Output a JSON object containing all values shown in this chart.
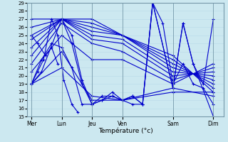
{
  "title": "Température (°c)",
  "bg_color": "#cce8f0",
  "grid_color": "#b8d8e8",
  "line_color": "#0000cc",
  "marker": "+",
  "days": [
    "Mer",
    "Lun",
    "Jeu",
    "Ven",
    "Sam",
    "Dim"
  ],
  "day_x": [
    0,
    1.5,
    3,
    4.5,
    7,
    9
  ],
  "ylim": [
    15,
    29
  ],
  "yticks": [
    15,
    16,
    17,
    18,
    19,
    20,
    21,
    22,
    23,
    24,
    25,
    26,
    27,
    28,
    29
  ],
  "series": [
    {
      "x": [
        0,
        1.5,
        3.0,
        4.5,
        7.0,
        9.0
      ],
      "y": [
        27.0,
        27.0,
        27.0,
        25.0,
        22.5,
        18.0
      ]
    },
    {
      "x": [
        0,
        1.5,
        3.0,
        4.5,
        7.0,
        9.0
      ],
      "y": [
        26.0,
        27.0,
        26.5,
        25.0,
        22.0,
        18.5
      ]
    },
    {
      "x": [
        0,
        1.5,
        3.0,
        4.5,
        7.0,
        9.0
      ],
      "y": [
        25.0,
        27.0,
        26.0,
        25.0,
        21.5,
        19.0
      ]
    },
    {
      "x": [
        0,
        1.5,
        3.0,
        4.5,
        7.0,
        9.0
      ],
      "y": [
        24.5,
        27.0,
        25.5,
        25.0,
        21.0,
        19.5
      ]
    },
    {
      "x": [
        0,
        1.5,
        3.0,
        4.5,
        7.0,
        9.0
      ],
      "y": [
        23.5,
        27.0,
        25.0,
        24.5,
        20.5,
        20.0
      ]
    },
    {
      "x": [
        0,
        1.5,
        3.0,
        4.5,
        7.0,
        9.0
      ],
      "y": [
        22.5,
        27.0,
        24.5,
        24.0,
        20.0,
        20.5
      ]
    },
    {
      "x": [
        0,
        1.5,
        3.0,
        4.5,
        7.0,
        9.0
      ],
      "y": [
        21.5,
        26.5,
        24.0,
        23.0,
        19.5,
        21.0
      ]
    },
    {
      "x": [
        0,
        1.5,
        3.0,
        4.5,
        7.0,
        9.0
      ],
      "y": [
        20.5,
        25.0,
        22.0,
        22.0,
        19.0,
        21.5
      ]
    },
    {
      "x": [
        0,
        1.5,
        3.0,
        4.5,
        7.0,
        9.0
      ],
      "y": [
        19.0,
        21.0,
        17.5,
        17.0,
        18.5,
        17.5
      ]
    },
    {
      "x": [
        0,
        1.5,
        3.0,
        4.5,
        7.0,
        9.0
      ],
      "y": [
        19.0,
        23.0,
        17.0,
        17.0,
        18.0,
        18.0
      ]
    },
    {
      "x": [
        0,
        0.5,
        1.5,
        2.0,
        2.5,
        3.0,
        3.5,
        4.0,
        4.5,
        5.0,
        5.5,
        6.0,
        7.0,
        7.5,
        8.0,
        9.0
      ],
      "y": [
        19.0,
        20.5,
        27.0,
        25.0,
        19.5,
        16.5,
        17.0,
        17.5,
        17.0,
        17.5,
        16.5,
        29.0,
        18.5,
        26.5,
        21.5,
        15.0
      ]
    },
    {
      "x": [
        0,
        0.5,
        1.0,
        1.5,
        2.0,
        2.5,
        3.0,
        3.5,
        4.0,
        4.5,
        5.0,
        5.5,
        6.0,
        6.5,
        7.0,
        7.5,
        8.0,
        8.5,
        9.0
      ],
      "y": [
        19.0,
        22.0,
        24.0,
        23.5,
        21.0,
        16.5,
        16.5,
        17.5,
        17.5,
        17.0,
        16.5,
        16.5,
        29.0,
        26.5,
        19.0,
        21.5,
        19.0,
        18.5,
        16.5
      ]
    },
    {
      "x": [
        0,
        0.3,
        0.6,
        1.0,
        1.3,
        1.6,
        2.0,
        2.3
      ],
      "y": [
        19.0,
        20.5,
        22.0,
        27.0,
        25.0,
        19.5,
        16.5,
        15.5
      ]
    },
    {
      "x": [
        1.5,
        2.0,
        2.5,
        3.0,
        3.5,
        4.0,
        4.5,
        5.0,
        5.5,
        6.0,
        7.0
      ],
      "y": [
        27.0,
        24.0,
        19.0,
        16.5,
        17.0,
        18.0,
        17.0,
        17.5,
        16.5,
        29.0,
        18.5
      ]
    },
    {
      "x": [
        0,
        0.3,
        0.7,
        1.0,
        1.3
      ],
      "y": [
        25.0,
        24.0,
        22.5,
        23.5,
        21.5
      ]
    },
    {
      "x": [
        7.0,
        7.5,
        8.0,
        8.5,
        9.0
      ],
      "y": [
        18.5,
        26.5,
        21.5,
        19.0,
        27.0
      ]
    }
  ],
  "xlim": [
    -0.2,
    9.5
  ],
  "xline_positions": [
    0,
    1.5,
    3,
    4.5,
    7,
    9
  ]
}
